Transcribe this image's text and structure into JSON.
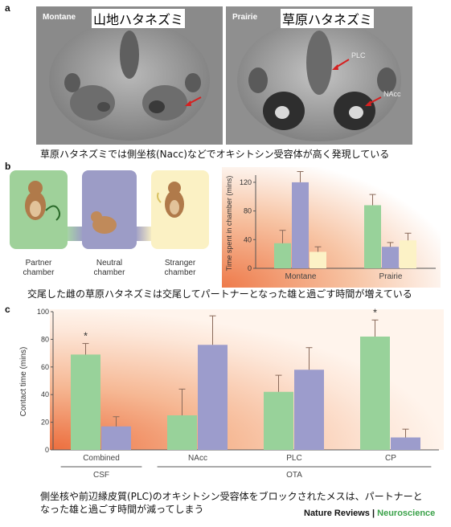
{
  "panel_a": {
    "letter": "a",
    "left_label": "Montane",
    "left_jp": "山地ハタネズミ",
    "right_label": "Prairie",
    "right_jp": "草原ハタネズミ",
    "region_plc": "PLC",
    "region_nacc": "NAcc",
    "caption": "草原ハタネズミでは側坐核(Nacc)などでオキシトシン受容体が高く発現している"
  },
  "panel_b": {
    "letter": "b",
    "chambers": [
      {
        "line1": "Partner",
        "line2": "chamber",
        "color": "#9fd19a"
      },
      {
        "line1": "Neutral",
        "line2": "chamber",
        "color": "#9c9cc6"
      },
      {
        "line1": "Stranger",
        "line2": "chamber",
        "color": "#fbf1c4"
      }
    ],
    "caption": "交尾した雌の草原ハタネズミは交尾してパートナーとなった雄と過ごす時間が増えている"
  },
  "panel_c": {
    "letter": "c",
    "caption_line1": "側坐核や前辺縁皮質(PLC)のオキシトシン受容体をブロックされたメスは、パートナーと",
    "caption_line2": "なった雄と過ごす時間が減ってしまう"
  },
  "footer": {
    "brand": "Nature Reviews",
    "separator": "|",
    "section": "Neuroscience",
    "section_color": "#3ba24a"
  },
  "colors": {
    "partner": "#98d29a",
    "neutral": "#9c9ccc",
    "stranger": "#fcf2c6",
    "bg_warm": "#f08a5a"
  },
  "chart_data": [
    {
      "type": "bar",
      "ylabel": "Time spent in chamber (mins)",
      "categories": [
        "Montane",
        "Prairie"
      ],
      "ylim": [
        0,
        130
      ],
      "yticks": [
        0,
        40,
        80,
        120
      ],
      "series": [
        {
          "values": [
            35,
            88
          ],
          "errors": [
            18,
            15
          ]
        },
        {
          "values": [
            120,
            30
          ],
          "errors": [
            15,
            6
          ]
        },
        {
          "values": [
            23,
            39
          ],
          "errors": [
            7,
            10
          ]
        }
      ],
      "grid": false
    },
    {
      "type": "bar",
      "ylabel": "Contact time (mins)",
      "categories": [
        "Combined",
        "NAcc",
        "PLC",
        "CP"
      ],
      "group_labels": [
        {
          "text": "CSF",
          "from": 0,
          "to": 0
        },
        {
          "text": "OTA",
          "from": 1,
          "to": 3
        }
      ],
      "ylim": [
        0,
        100
      ],
      "yticks": [
        0,
        20,
        40,
        60,
        80,
        100
      ],
      "series": [
        {
          "values": [
            69,
            25,
            42,
            82
          ],
          "errors": [
            8,
            19,
            12,
            12
          ]
        },
        {
          "values": [
            17,
            76,
            58,
            9
          ],
          "errors": [
            7,
            21,
            16,
            6
          ]
        }
      ],
      "annotations": [
        {
          "category": 0,
          "text": "*"
        },
        {
          "category": 3,
          "text": "*"
        }
      ],
      "grid": false
    }
  ]
}
